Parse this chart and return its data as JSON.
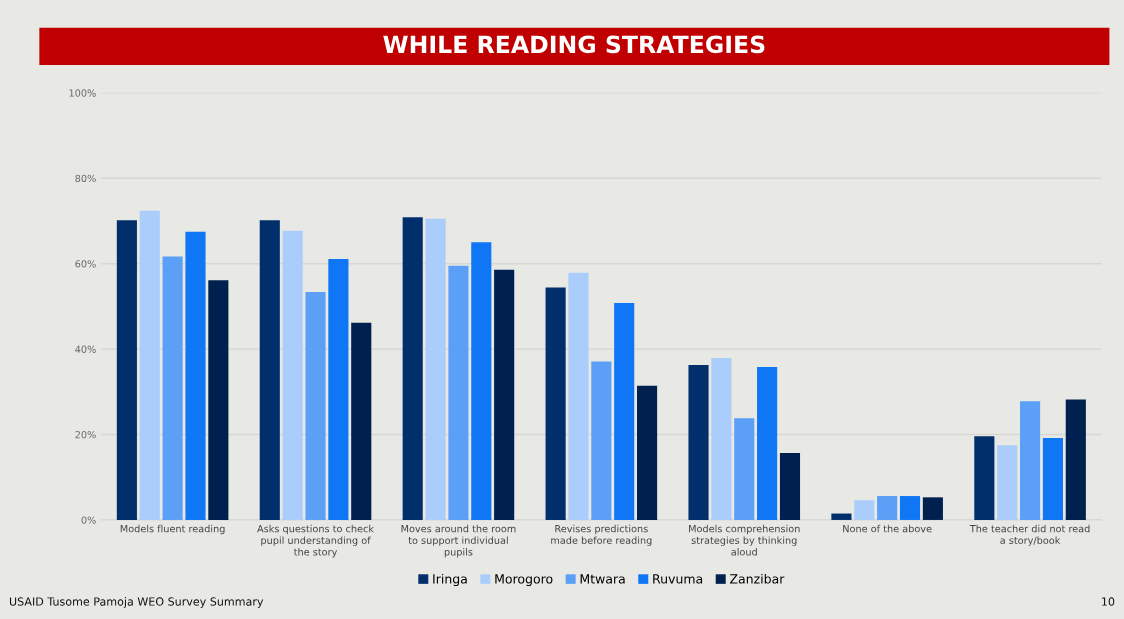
{
  "chart_data": {
    "type": "bar",
    "title": "WHILE READING STRATEGIES",
    "categories": [
      "Models fluent reading",
      "Asks questions to check pupil understanding of the story",
      "Moves around the room to support individual pupils",
      "Revises predictions made before reading",
      "Models comprehension strategies by thinking aloud",
      "None of the above",
      "The teacher did not read a story/book"
    ],
    "series": [
      {
        "name": "Iringa",
        "color": "#002f6c",
        "values": [
          70.2,
          70.2,
          70.9,
          54.4,
          36.3,
          1.5,
          19.6
        ]
      },
      {
        "name": "Morogoro",
        "color": "#abcdfb",
        "values": [
          72.4,
          67.7,
          70.5,
          57.9,
          37.9,
          4.6,
          17.5
        ]
      },
      {
        "name": "Mtwara",
        "color": "#5c9ff7",
        "values": [
          61.7,
          53.4,
          59.5,
          37.1,
          23.8,
          5.6,
          27.8
        ]
      },
      {
        "name": "Ruvuma",
        "color": "#0f76f5",
        "values": [
          67.5,
          61.1,
          65.0,
          50.8,
          35.8,
          5.6,
          19.2
        ]
      },
      {
        "name": "Zanzibar",
        "color": "#002150",
        "values": [
          56.1,
          46.2,
          58.6,
          31.4,
          15.7,
          5.3,
          28.2
        ]
      }
    ],
    "ylim": [
      0,
      100
    ],
    "yticks": [
      {
        "value": 0,
        "label": "0%"
      },
      {
        "value": 20,
        "label": "20%"
      },
      {
        "value": 40,
        "label": "40%"
      },
      {
        "value": 60,
        "label": "60%"
      },
      {
        "value": 80,
        "label": "80%"
      },
      {
        "value": 100,
        "label": "100%"
      }
    ],
    "grid": "y",
    "legend": "bottom",
    "annotations": [
      "USAID Tusome Pamoja WEO Survey Summary",
      "10"
    ]
  }
}
